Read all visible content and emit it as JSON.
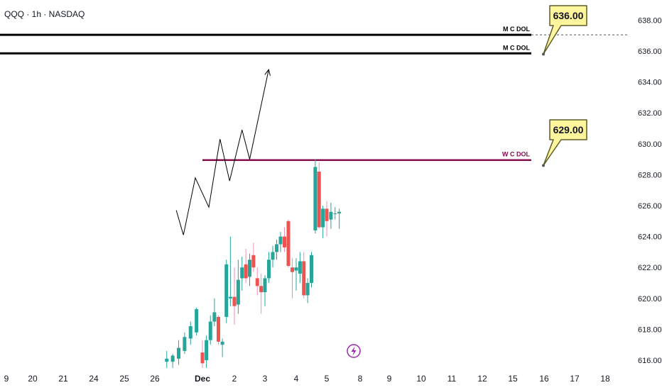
{
  "header": {
    "symbol_title": "QQQ · 1h · NASDAQ"
  },
  "colors": {
    "up": "#26a69a",
    "down": "#ef5350",
    "wick_down": "#f48fb1",
    "level_line": "#000000",
    "wcdol_line": "#880e4f",
    "callout_fill": "#fff59d",
    "callout_border": "#5d5d2a",
    "text": "#131722",
    "lightning": "#9c27b0"
  },
  "chart_data": {
    "type": "candlestick",
    "title": "QQQ · 1h · NASDAQ",
    "ylim": [
      615.5,
      638.5
    ],
    "y_ticks": [
      "616.00",
      "618.00",
      "620.00",
      "622.00",
      "624.00",
      "626.00",
      "628.00",
      "630.00",
      "632.00",
      "634.00",
      "636.00",
      "638.00"
    ],
    "x_ticks": [
      "9",
      "20",
      "21",
      "24",
      "25",
      "26",
      "Dec",
      "2",
      "3",
      "4",
      "5",
      "8",
      "9",
      "10",
      "11",
      "12",
      "15",
      "16",
      "17",
      "18"
    ],
    "levels": [
      {
        "label": "M C DOL",
        "price": 637.05
      },
      {
        "label": "M C DOL",
        "price": 635.85
      },
      {
        "label": "W C DOL",
        "price": 628.95
      }
    ],
    "price_labels": [
      "636.00",
      "629.00"
    ],
    "candles": [
      {
        "x": "26",
        "open": 615.9,
        "high": 616.6,
        "low": 615.5,
        "close": 616.1
      },
      {
        "x": "26",
        "open": 615.9,
        "high": 616.4,
        "low": 615.5,
        "close": 616.3
      },
      {
        "x": "Dec",
        "open": 616.1,
        "high": 617.3,
        "low": 615.7,
        "close": 616.8
      },
      {
        "x": "Dec",
        "open": 616.6,
        "high": 617.8,
        "low": 616.4,
        "close": 617.5
      },
      {
        "x": "Dec",
        "open": 617.4,
        "high": 618.5,
        "low": 617.0,
        "close": 618.2
      },
      {
        "x": "Dec",
        "open": 617.8,
        "high": 619.4,
        "low": 617.6,
        "close": 619.3
      },
      {
        "x": "Dec",
        "open": 616.5,
        "high": 617.3,
        "low": 615.5,
        "close": 615.8
      },
      {
        "x": "Dec",
        "open": 616.0,
        "high": 617.6,
        "low": 615.5,
        "close": 617.3
      },
      {
        "x": "Dec",
        "open": 617.3,
        "high": 618.9,
        "low": 617.0,
        "close": 618.5
      },
      {
        "x": "Dec",
        "open": 618.5,
        "high": 620.0,
        "low": 618.2,
        "close": 619.1
      },
      {
        "x": "Dec",
        "open": 618.8,
        "high": 618.9,
        "low": 617.0,
        "close": 617.2
      },
      {
        "x": "Dec",
        "open": 617.0,
        "high": 617.4,
        "low": 616.2,
        "close": 617.2
      },
      {
        "x": "2",
        "open": 618.8,
        "high": 622.5,
        "low": 618.4,
        "close": 622.2
      },
      {
        "x": "2",
        "open": 620.0,
        "high": 624.0,
        "low": 619.5,
        "close": 620.1
      },
      {
        "x": "2",
        "open": 620.1,
        "high": 622.0,
        "low": 618.3,
        "close": 619.5
      },
      {
        "x": "2",
        "open": 619.6,
        "high": 622.5,
        "low": 619.0,
        "close": 621.2
      },
      {
        "x": "2",
        "open": 621.3,
        "high": 622.7,
        "low": 620.5,
        "close": 622.0
      },
      {
        "x": "2",
        "open": 622.2,
        "high": 623.2,
        "low": 621.0,
        "close": 621.3
      },
      {
        "x": "2",
        "open": 621.4,
        "high": 622.9,
        "low": 620.8,
        "close": 622.5
      },
      {
        "x": "2",
        "open": 622.8,
        "high": 623.6,
        "low": 621.7,
        "close": 622.0
      },
      {
        "x": "3",
        "open": 621.3,
        "high": 622.0,
        "low": 620.2,
        "close": 620.8
      },
      {
        "x": "3",
        "open": 620.8,
        "high": 621.6,
        "low": 619.0,
        "close": 620.4
      },
      {
        "x": "3",
        "open": 620.4,
        "high": 621.5,
        "low": 619.5,
        "close": 621.3
      },
      {
        "x": "3",
        "open": 621.3,
        "high": 623.0,
        "low": 621.0,
        "close": 622.5
      },
      {
        "x": "3",
        "open": 622.5,
        "high": 623.4,
        "low": 622.0,
        "close": 623.0
      },
      {
        "x": "3",
        "open": 623.0,
        "high": 623.8,
        "low": 622.5,
        "close": 623.5
      },
      {
        "x": "4",
        "open": 623.5,
        "high": 624.3,
        "low": 623.0,
        "close": 624.0
      },
      {
        "x": "4",
        "open": 624.0,
        "high": 624.6,
        "low": 623.0,
        "close": 623.3
      },
      {
        "x": "4",
        "open": 625.0,
        "high": 625.1,
        "low": 622.0,
        "close": 622.1
      },
      {
        "x": "4",
        "open": 622.0,
        "high": 622.6,
        "low": 620.0,
        "close": 621.7
      },
      {
        "x": "4",
        "open": 621.8,
        "high": 622.6,
        "low": 620.5,
        "close": 622.0
      },
      {
        "x": "4",
        "open": 621.6,
        "high": 623.0,
        "low": 621.0,
        "close": 622.4
      },
      {
        "x": "4",
        "open": 622.4,
        "high": 623.0,
        "low": 620.0,
        "close": 620.2
      },
      {
        "x": "4",
        "open": 620.2,
        "high": 621.3,
        "low": 619.7,
        "close": 621.0
      },
      {
        "x": "5",
        "open": 621.0,
        "high": 623.0,
        "low": 620.7,
        "close": 622.8
      },
      {
        "x": "5",
        "open": 624.4,
        "high": 629.0,
        "low": 624.2,
        "close": 628.5
      },
      {
        "x": "5",
        "open": 628.2,
        "high": 628.8,
        "low": 624.5,
        "close": 624.6
      },
      {
        "x": "5",
        "open": 624.6,
        "high": 626.0,
        "low": 623.9,
        "close": 625.8
      },
      {
        "x": "5",
        "open": 625.8,
        "high": 626.3,
        "low": 624.0,
        "close": 625.0
      },
      {
        "x": "5",
        "open": 625.1,
        "high": 626.2,
        "low": 624.5,
        "close": 625.6
      },
      {
        "x": "5",
        "open": 625.5,
        "high": 625.9,
        "low": 625.1,
        "close": 625.5
      },
      {
        "x": "5",
        "open": 625.5,
        "high": 625.8,
        "low": 624.5,
        "close": 625.6
      }
    ],
    "projection": [
      {
        "x": 5.45,
        "y": 625.7
      },
      {
        "x": 5.6,
        "y": 624.1
      },
      {
        "x": 5.85,
        "y": 627.8
      },
      {
        "x": 6.2,
        "y": 625.9
      },
      {
        "x": 6.55,
        "y": 630.3
      },
      {
        "x": 6.85,
        "y": 627.6
      },
      {
        "x": 7.25,
        "y": 630.9
      },
      {
        "x": 7.5,
        "y": 629.0
      },
      {
        "x": 8.12,
        "y": 634.8
      }
    ]
  }
}
